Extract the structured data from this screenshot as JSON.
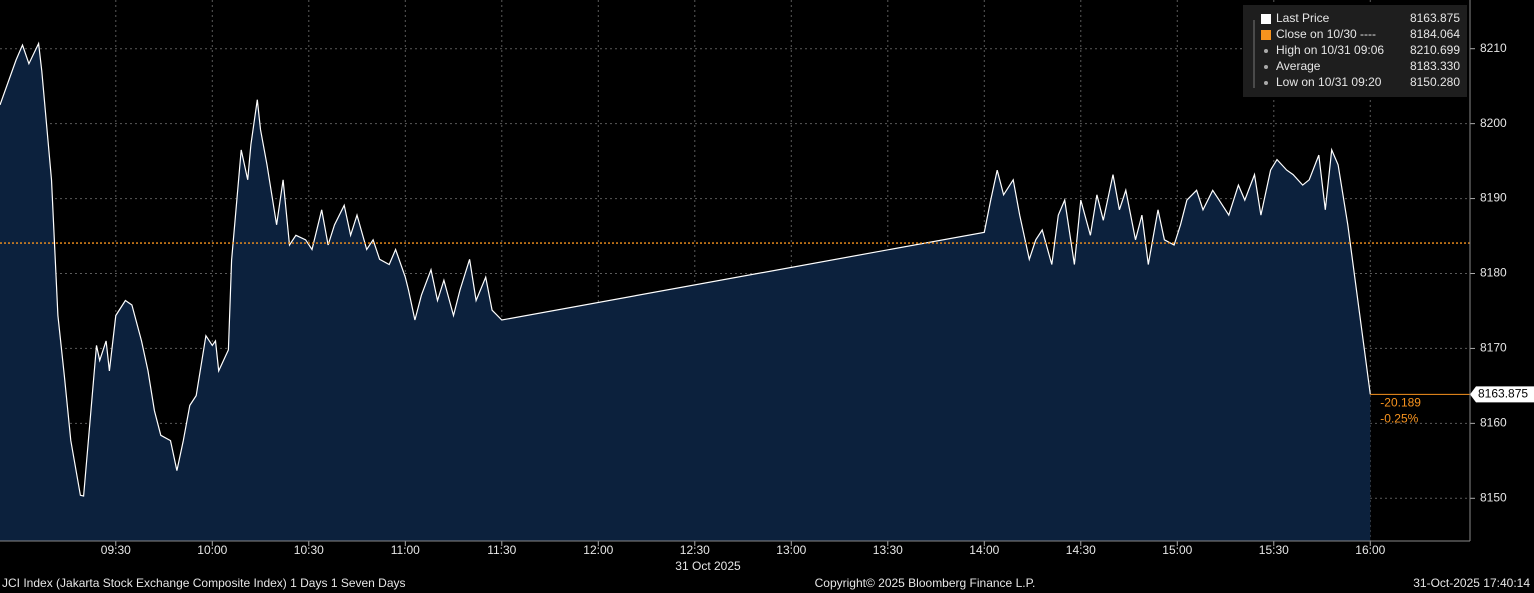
{
  "chart_data": {
    "type": "area",
    "title": "JCI Index (Jakarta Stock Exchange Composite Index) 1 Days 1 Seven Days",
    "date_label": "31 Oct 2025",
    "copyright": "Copyright© 2025 Bloomberg Finance L.P.",
    "timestamp": "31-Oct-2025 17:40:14",
    "color": "#0c213d",
    "line_color": "#ffffff",
    "grid": true,
    "xlim": [
      "08:54",
      "16:31"
    ],
    "xticks": [
      "09:30",
      "10:00",
      "10:30",
      "11:00",
      "11:30",
      "12:00",
      "12:30",
      "13:00",
      "13:30",
      "14:00",
      "14:30",
      "15:00",
      "15:30",
      "16:00"
    ],
    "ylim": [
      8144.3,
      8216.5
    ],
    "yticks": [
      8150,
      8160,
      8170,
      8180,
      8190,
      8200,
      8210
    ],
    "x": [
      "08:54",
      "08:59",
      "09:01",
      "09:03",
      "09:06",
      "09:07",
      "09:10",
      "09:12",
      "09:14",
      "09:16",
      "09:19",
      "09:20",
      "09:22",
      "09:24",
      "09:25",
      "09:27",
      "09:28",
      "09:30",
      "09:33",
      "09:35",
      "09:38",
      "09:40",
      "09:42",
      "09:44",
      "09:47",
      "09:49",
      "09:51",
      "09:53",
      "09:55",
      "09:58",
      "10:00",
      "10:01",
      "10:02",
      "10:05",
      "10:06",
      "10:09",
      "10:11",
      "10:12",
      "10:14",
      "10:15",
      "10:17",
      "10:20",
      "10:22",
      "10:24",
      "10:26",
      "10:29",
      "10:31",
      "10:34",
      "10:36",
      "10:38",
      "10:41",
      "10:43",
      "10:45",
      "10:48",
      "10:50",
      "10:52",
      "10:55",
      "10:57",
      "11:00",
      "11:01",
      "11:03",
      "11:05",
      "11:08",
      "11:10",
      "11:12",
      "11:15",
      "11:17",
      "11:20",
      "11:22",
      "11:25",
      "11:27",
      "11:30",
      "14:00",
      "14:02",
      "14:04",
      "14:06",
      "14:09",
      "14:11",
      "14:14",
      "14:16",
      "14:18",
      "14:21",
      "14:23",
      "14:25",
      "14:28",
      "14:30",
      "14:33",
      "14:35",
      "14:37",
      "14:40",
      "14:42",
      "14:44",
      "14:47",
      "14:49",
      "14:51",
      "14:54",
      "14:56",
      "14:59",
      "15:01",
      "15:03",
      "15:06",
      "15:08",
      "15:11",
      "15:13",
      "15:16",
      "15:19",
      "15:21",
      "15:24",
      "15:26",
      "15:29",
      "15:31",
      "15:34",
      "15:36",
      "15:39",
      "15:41",
      "15:44",
      "15:46",
      "15:48",
      "15:50",
      "15:53",
      "16:00"
    ],
    "values": [
      8202.5,
      8208.5,
      8210.5,
      8208,
      8210.7,
      8207,
      8192.5,
      8174.4,
      8166.4,
      8157.7,
      8150.4,
      8150.3,
      8160.4,
      8170.4,
      8168.4,
      8171,
      8167,
      8174.4,
      8176.4,
      8175.8,
      8171,
      8167,
      8161.7,
      8158.4,
      8157.7,
      8153.7,
      8157.7,
      8162.4,
      8163.7,
      8171.7,
      8170.4,
      8171,
      8167,
      8169.8,
      8181.8,
      8196.5,
      8192.5,
      8197.2,
      8203.2,
      8199.2,
      8194.5,
      8186.5,
      8192.5,
      8183.8,
      8185.1,
      8184.5,
      8183.2,
      8188.5,
      8183.8,
      8186.5,
      8189.1,
      8185.1,
      8187.8,
      8183.2,
      8184.5,
      8181.9,
      8181.2,
      8183.2,
      8179.5,
      8177.8,
      8173.8,
      8177.1,
      8180.5,
      8176.4,
      8179.1,
      8174.4,
      8177.8,
      8181.9,
      8176.4,
      8179.5,
      8175.1,
      8173.8,
      8185.5,
      8189.8,
      8193.8,
      8190.5,
      8192.5,
      8187.8,
      8181.9,
      8184.5,
      8185.8,
      8181.2,
      8187.8,
      8189.8,
      8181.2,
      8189.8,
      8185.1,
      8190.5,
      8187.1,
      8193.2,
      8188.5,
      8191.1,
      8184.5,
      8187.8,
      8181.2,
      8188.5,
      8184.5,
      8183.8,
      8186.5,
      8189.8,
      8191.1,
      8188.5,
      8191.1,
      8189.8,
      8187.8,
      8191.8,
      8189.8,
      8193.2,
      8187.8,
      8193.8,
      8195.2,
      8193.8,
      8193.2,
      8191.8,
      8192.5,
      8195.8,
      8188.5,
      8196.5,
      8194.5,
      8186.5,
      8163.875
    ],
    "close": {
      "value": 8184.064,
      "color": "#f7931e"
    },
    "last_price": {
      "value": 8163.875,
      "change": -20.189,
      "change_pct": {
        "value": -0.25,
        "label": "-0.25%"
      },
      "color": "#f7931e"
    },
    "legend": [
      {
        "name": "Last Price",
        "value": 8163.875,
        "color": "#ffffff"
      },
      {
        "name": "Close on 10/30 ----",
        "value": 8184.064,
        "color": "#f7931e"
      },
      {
        "name": "High on 10/31 09:06",
        "value": 8210.699
      },
      {
        "name": "Average",
        "value": 8183.33,
        "value_label": "8183.330"
      },
      {
        "name": "Low on 10/31 09:20",
        "value": 8150.28,
        "value_label": "8150.280"
      }
    ]
  }
}
